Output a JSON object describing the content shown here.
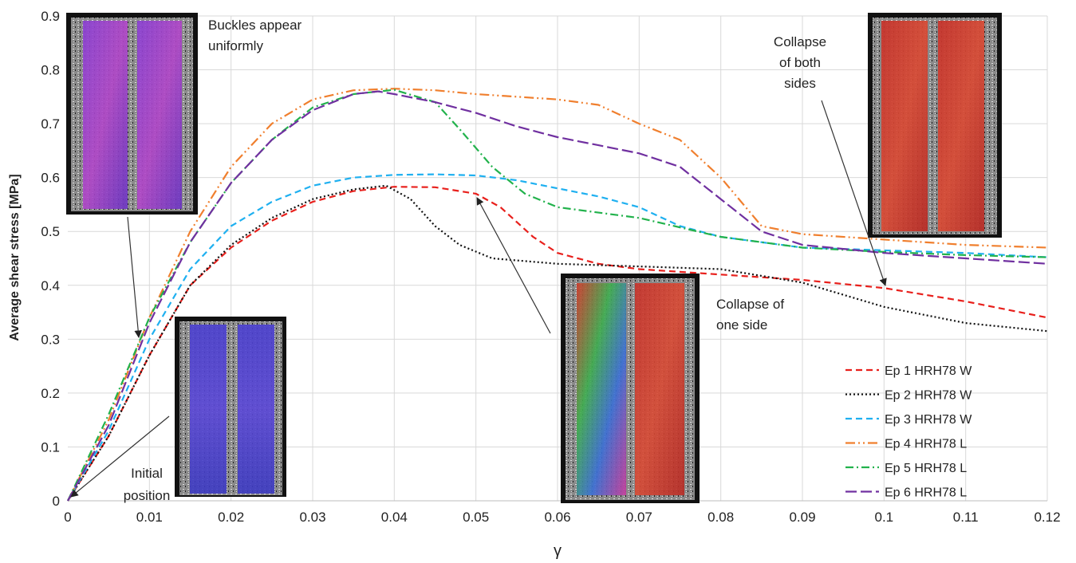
{
  "chart_data": {
    "type": "line",
    "xlabel": "γ",
    "ylabel": "Average shear stress [MPa]",
    "xlim": [
      0,
      0.12
    ],
    "ylim": [
      0,
      0.9
    ],
    "x_ticks": [
      "0",
      "0.01",
      "0.02",
      "0.03",
      "0.04",
      "0.05",
      "0.06",
      "0.07",
      "0.08",
      "0.09",
      "0.1",
      "0.11",
      "0.12"
    ],
    "y_ticks": [
      "0",
      "0.1",
      "0.2",
      "0.3",
      "0.4",
      "0.5",
      "0.6",
      "0.7",
      "0.8",
      "0.9"
    ],
    "grid": true,
    "legend_position": "bottom-right",
    "series": [
      {
        "name": "Ep 1 HRH78 W",
        "color": "#e8201c",
        "dash": "dashed",
        "points": [
          [
            0,
            0
          ],
          [
            0.005,
            0.12
          ],
          [
            0.01,
            0.27
          ],
          [
            0.015,
            0.4
          ],
          [
            0.02,
            0.47
          ],
          [
            0.025,
            0.52
          ],
          [
            0.03,
            0.555
          ],
          [
            0.035,
            0.575
          ],
          [
            0.04,
            0.583
          ],
          [
            0.045,
            0.582
          ],
          [
            0.05,
            0.57
          ],
          [
            0.053,
            0.545
          ],
          [
            0.057,
            0.49
          ],
          [
            0.06,
            0.46
          ],
          [
            0.065,
            0.44
          ],
          [
            0.07,
            0.43
          ],
          [
            0.08,
            0.42
          ],
          [
            0.09,
            0.41
          ],
          [
            0.1,
            0.395
          ],
          [
            0.11,
            0.37
          ],
          [
            0.12,
            0.34
          ]
        ]
      },
      {
        "name": "Ep 2 HRH78 W",
        "color": "#111111",
        "dash": "dotted",
        "points": [
          [
            0,
            0
          ],
          [
            0.005,
            0.12
          ],
          [
            0.01,
            0.27
          ],
          [
            0.015,
            0.4
          ],
          [
            0.02,
            0.475
          ],
          [
            0.025,
            0.525
          ],
          [
            0.03,
            0.56
          ],
          [
            0.035,
            0.578
          ],
          [
            0.039,
            0.585
          ],
          [
            0.042,
            0.56
          ],
          [
            0.045,
            0.51
          ],
          [
            0.048,
            0.475
          ],
          [
            0.052,
            0.45
          ],
          [
            0.06,
            0.44
          ],
          [
            0.07,
            0.435
          ],
          [
            0.08,
            0.43
          ],
          [
            0.09,
            0.405
          ],
          [
            0.1,
            0.36
          ],
          [
            0.11,
            0.33
          ],
          [
            0.12,
            0.315
          ]
        ]
      },
      {
        "name": "Ep 3 HRH78 W",
        "color": "#1fb0f0",
        "dash": "dashed",
        "points": [
          [
            0,
            0
          ],
          [
            0.005,
            0.13
          ],
          [
            0.01,
            0.3
          ],
          [
            0.015,
            0.43
          ],
          [
            0.02,
            0.51
          ],
          [
            0.025,
            0.555
          ],
          [
            0.03,
            0.585
          ],
          [
            0.035,
            0.6
          ],
          [
            0.04,
            0.605
          ],
          [
            0.045,
            0.606
          ],
          [
            0.05,
            0.604
          ],
          [
            0.055,
            0.595
          ],
          [
            0.06,
            0.58
          ],
          [
            0.065,
            0.565
          ],
          [
            0.07,
            0.545
          ],
          [
            0.075,
            0.51
          ],
          [
            0.08,
            0.49
          ],
          [
            0.09,
            0.47
          ],
          [
            0.1,
            0.465
          ],
          [
            0.11,
            0.46
          ],
          [
            0.12,
            0.452
          ]
        ]
      },
      {
        "name": "Ep 4 HRH78 L",
        "color": "#f07f2e",
        "dash": "dashdotdot",
        "points": [
          [
            0,
            0
          ],
          [
            0.005,
            0.15
          ],
          [
            0.01,
            0.34
          ],
          [
            0.015,
            0.5
          ],
          [
            0.02,
            0.62
          ],
          [
            0.025,
            0.7
          ],
          [
            0.03,
            0.745
          ],
          [
            0.035,
            0.762
          ],
          [
            0.04,
            0.765
          ],
          [
            0.045,
            0.762
          ],
          [
            0.05,
            0.755
          ],
          [
            0.055,
            0.75
          ],
          [
            0.06,
            0.745
          ],
          [
            0.065,
            0.735
          ],
          [
            0.07,
            0.7
          ],
          [
            0.075,
            0.67
          ],
          [
            0.08,
            0.6
          ],
          [
            0.085,
            0.51
          ],
          [
            0.09,
            0.495
          ],
          [
            0.1,
            0.485
          ],
          [
            0.11,
            0.475
          ],
          [
            0.12,
            0.47
          ]
        ]
      },
      {
        "name": "Ep 5 HRH78 L",
        "color": "#22b24c",
        "dash": "dashdot",
        "points": [
          [
            0,
            0
          ],
          [
            0.005,
            0.16
          ],
          [
            0.01,
            0.34
          ],
          [
            0.015,
            0.48
          ],
          [
            0.02,
            0.59
          ],
          [
            0.025,
            0.67
          ],
          [
            0.03,
            0.73
          ],
          [
            0.035,
            0.755
          ],
          [
            0.04,
            0.763
          ],
          [
            0.045,
            0.74
          ],
          [
            0.048,
            0.69
          ],
          [
            0.052,
            0.62
          ],
          [
            0.056,
            0.57
          ],
          [
            0.06,
            0.545
          ],
          [
            0.07,
            0.525
          ],
          [
            0.08,
            0.49
          ],
          [
            0.09,
            0.47
          ],
          [
            0.1,
            0.462
          ],
          [
            0.11,
            0.456
          ],
          [
            0.12,
            0.452
          ]
        ]
      },
      {
        "name": "Ep 6 HRH78 L",
        "color": "#7030a0",
        "dash": "longdash",
        "points": [
          [
            0,
            0
          ],
          [
            0.005,
            0.14
          ],
          [
            0.01,
            0.33
          ],
          [
            0.015,
            0.48
          ],
          [
            0.02,
            0.59
          ],
          [
            0.025,
            0.67
          ],
          [
            0.03,
            0.725
          ],
          [
            0.035,
            0.755
          ],
          [
            0.038,
            0.76
          ],
          [
            0.04,
            0.755
          ],
          [
            0.045,
            0.74
          ],
          [
            0.05,
            0.72
          ],
          [
            0.055,
            0.695
          ],
          [
            0.06,
            0.675
          ],
          [
            0.065,
            0.66
          ],
          [
            0.07,
            0.645
          ],
          [
            0.075,
            0.62
          ],
          [
            0.08,
            0.56
          ],
          [
            0.085,
            0.5
          ],
          [
            0.09,
            0.475
          ],
          [
            0.1,
            0.46
          ],
          [
            0.11,
            0.45
          ],
          [
            0.12,
            0.44
          ]
        ]
      }
    ],
    "annotations": [
      {
        "id": "buckles",
        "text": [
          "Buckles appear",
          "uniformly"
        ]
      },
      {
        "id": "collapse-both",
        "text": [
          "Collapse",
          "of both",
          "sides"
        ]
      },
      {
        "id": "collapse-one",
        "text": [
          "Collapse of",
          "one side"
        ]
      },
      {
        "id": "initial",
        "text": [
          "Initial",
          "position"
        ]
      }
    ]
  }
}
